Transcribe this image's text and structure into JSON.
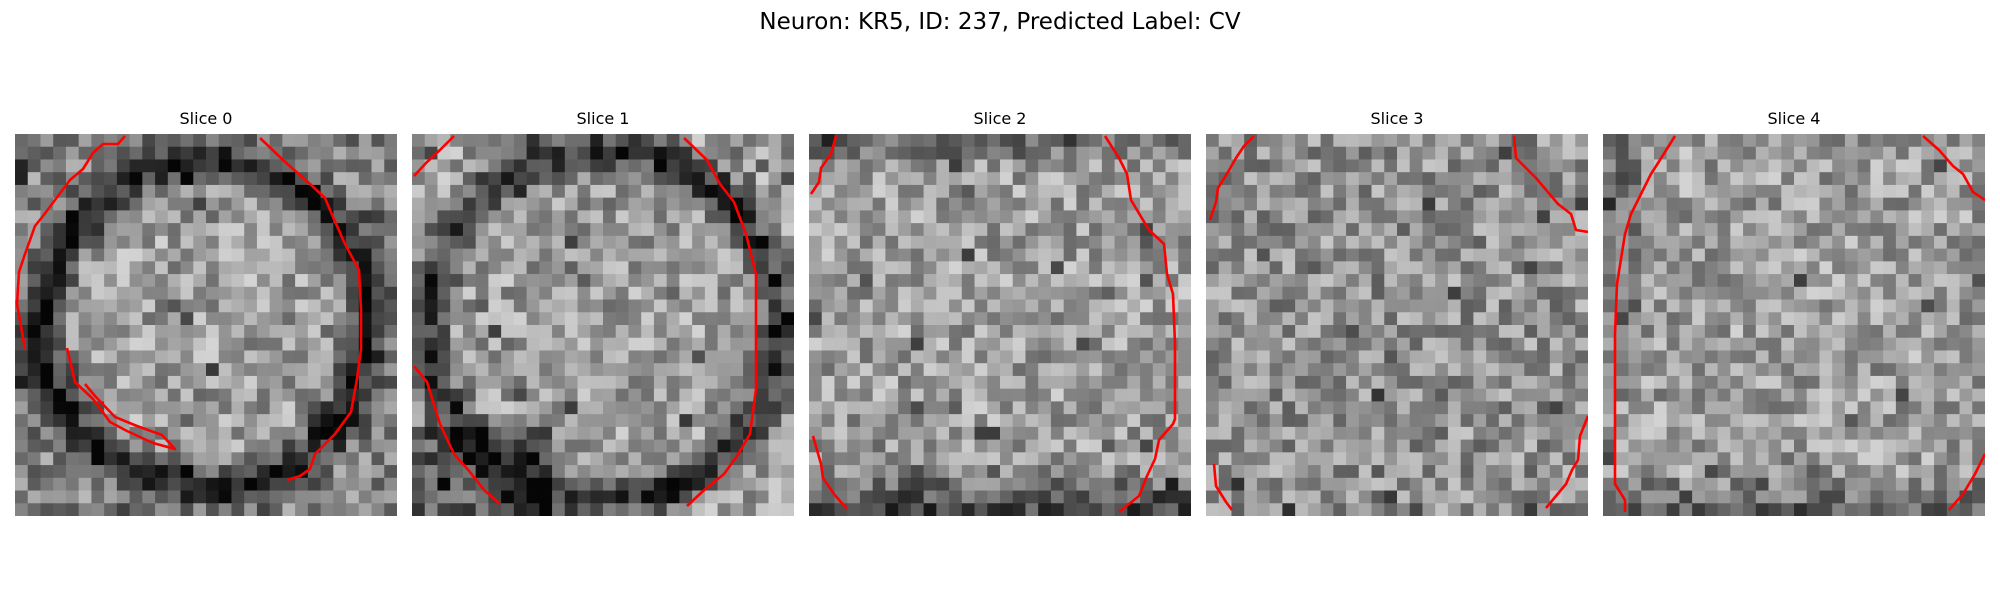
{
  "figure": {
    "title": "Neuron: KR5, ID: 237, Predicted Label: CV",
    "contour_color": "#ff0000"
  },
  "panels": [
    {
      "title": "Slice 0",
      "grid": 30,
      "dark": "ring",
      "seed": 11
    },
    {
      "title": "Slice 1",
      "grid": 30,
      "dark": "ring-lower",
      "seed": 23
    },
    {
      "title": "Slice 2",
      "grid": 30,
      "dark": "bottom",
      "seed": 37
    },
    {
      "title": "Slice 3",
      "grid": 30,
      "dark": "none",
      "seed": 41
    },
    {
      "title": "Slice 4",
      "grid": 30,
      "dark": "corner",
      "seed": 53
    }
  ]
}
